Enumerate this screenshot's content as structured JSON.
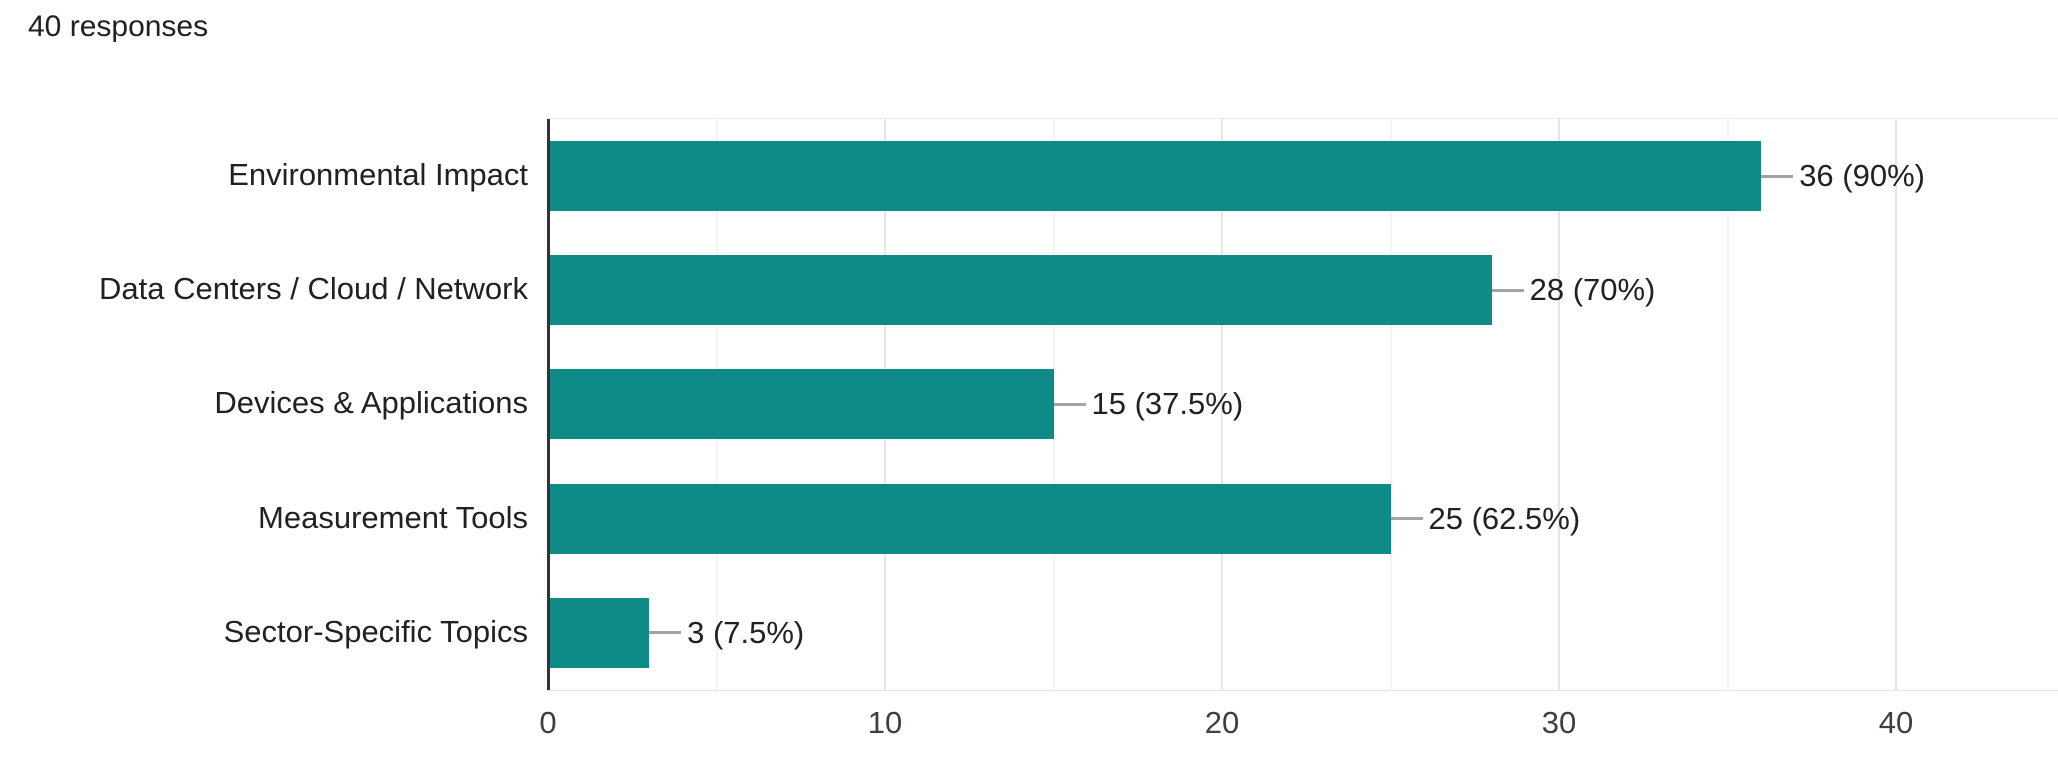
{
  "header": {
    "responses_label": "40 responses"
  },
  "chart_data": {
    "type": "bar",
    "orientation": "horizontal",
    "title": "",
    "xlabel": "",
    "ylabel": "",
    "total_responses": 40,
    "categories": [
      "Environmental Impact",
      "Data Centers / Cloud / Network",
      "Devices & Applications",
      "Measurement Tools",
      "Sector-Specific Topics"
    ],
    "values": [
      36,
      28,
      15,
      25,
      3
    ],
    "percentages": [
      90,
      70,
      37.5,
      62.5,
      7.5
    ],
    "bar_labels": [
      "36 (90%)",
      "28 (70%)",
      "15 (37.5%)",
      "25 (62.5%)",
      "3 (7.5%)"
    ],
    "xlim": [
      0,
      40
    ],
    "x_ticks": [
      0,
      10,
      20,
      30,
      40
    ],
    "x_minor_ticks": [
      5,
      15,
      25,
      35
    ],
    "grid": true,
    "legend": "none",
    "bar_color": "#0e8b86"
  },
  "colors": {
    "bar": "#0e8b86",
    "axis_line": "#333333",
    "major_gridline": "#e6e6e6",
    "minor_gridline": "#f4f4f4",
    "callout_line": "#a3a3a3",
    "label_text": "#212121",
    "header_text": "#202124"
  }
}
